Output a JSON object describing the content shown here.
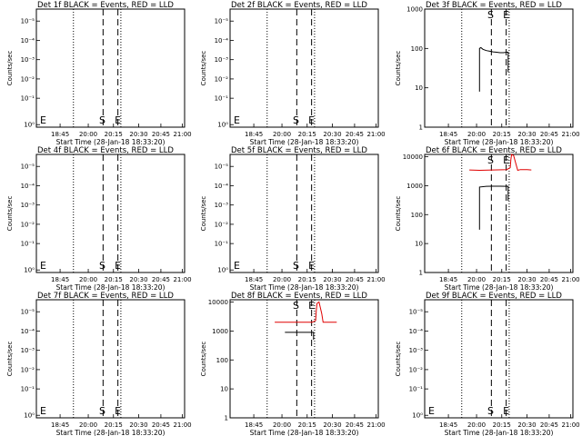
{
  "chart_data": [
    {
      "type": "line",
      "title": "Det 1f BLACK = Events, RED = LLD",
      "xlabel": "Start Time (28-Jan-18 18:33:20)",
      "ylabel": "Counts/sec",
      "xticks": [
        "18:45",
        "20:00",
        "20:15",
        "20:30",
        "20:45",
        "21:00"
      ],
      "yscale": "log",
      "yticks": [
        "10⁰",
        "10⁻¹",
        "10⁻²",
        "10⁻³",
        "10⁻⁴",
        "10⁻⁵"
      ],
      "ylim": [
        0.5,
        8
      ],
      "markers": [
        {
          "label": "S",
          "x": 0.445
        },
        {
          "label": "E",
          "x": 0.55
        }
      ],
      "vlines_dotted": [
        0.25,
        0.57
      ],
      "vlines_dashed": [
        0.45,
        0.55
      ],
      "series": []
    },
    {
      "type": "line",
      "title": "Det 2f BLACK = Events, RED = LLD",
      "xlabel": "Start Time (28-Jan-18 18:33:20)",
      "ylabel": "Counts/sec",
      "xticks": [
        "18:45",
        "20:00",
        "20:15",
        "20:30",
        "20:45",
        "21:00"
      ],
      "yscale": "log",
      "yticks": [
        "10⁰",
        "10⁻¹",
        "10⁻²",
        "10⁻³",
        "10⁻⁴",
        "10⁻⁵"
      ],
      "ylim": [
        0.5,
        8
      ],
      "markers": [
        {
          "label": "S",
          "x": 0.445
        },
        {
          "label": "E",
          "x": 0.55
        }
      ],
      "vlines_dotted": [
        0.25,
        0.57
      ],
      "vlines_dashed": [
        0.45,
        0.55
      ],
      "series": []
    },
    {
      "type": "line",
      "title": "Det 3f BLACK = Events, RED = LLD",
      "xlabel": "Start Time (28-Jan-18 18:33:20)",
      "ylabel": "Counts/sec",
      "xticks": [
        "18:45",
        "20:00",
        "20:15",
        "20:30",
        "20:45",
        "21:00"
      ],
      "yscale": "log",
      "yticks": [
        "1",
        "10",
        "100",
        "1000"
      ],
      "ylim": [
        1,
        1000
      ],
      "markers": [
        {
          "label": "S",
          "x": 0.445
        },
        {
          "label": "E",
          "x": 0.55
        }
      ],
      "vlines_dotted": [
        0.25,
        0.57
      ],
      "vlines_dashed": [
        0.45,
        0.55
      ],
      "series": [
        {
          "color": "#000000",
          "points": [
            [
              0.0,
              8
            ],
            [
              0.0,
              100
            ],
            [
              0.02,
              105
            ],
            [
              0.05,
              95
            ],
            [
              0.1,
              88
            ],
            [
              0.15,
              85
            ],
            [
              0.2,
              82
            ],
            [
              0.25,
              80
            ],
            [
              0.3,
              78
            ],
            [
              0.35,
              78
            ],
            [
              0.4,
              80
            ],
            [
              0.42,
              80
            ],
            [
              0.42,
              25
            ]
          ]
        }
      ]
    },
    {
      "type": "line",
      "title": "Det 4f BLACK = Events, RED = LLD",
      "xlabel": "Start Time (28-Jan-18 18:33:20)",
      "ylabel": "Counts/sec",
      "xticks": [
        "18:45",
        "20:00",
        "20:15",
        "20:30",
        "20:45",
        "21:00"
      ],
      "yscale": "log",
      "yticks": [
        "10⁰",
        "10⁻¹",
        "10⁻²",
        "10⁻³",
        "10⁻⁴",
        "10⁻⁵"
      ],
      "ylim": [
        0.5,
        8
      ],
      "markers": [
        {
          "label": "S",
          "x": 0.445
        },
        {
          "label": "E",
          "x": 0.55
        }
      ],
      "vlines_dotted": [
        0.25,
        0.57
      ],
      "vlines_dashed": [
        0.45,
        0.55
      ],
      "series": []
    },
    {
      "type": "line",
      "title": "Det 5f BLACK = Events, RED = LLD",
      "xlabel": "Start Time (28-Jan-18 18:33:20)",
      "ylabel": "Counts/sec",
      "xticks": [
        "18:45",
        "20:00",
        "20:15",
        "20:30",
        "20:45",
        "21:00"
      ],
      "yscale": "log",
      "yticks": [
        "10⁰",
        "10⁻¹",
        "10⁻²",
        "10⁻³",
        "10⁻⁴",
        "10⁻⁵"
      ],
      "ylim": [
        0.5,
        8
      ],
      "markers": [
        {
          "label": "S",
          "x": 0.445
        },
        {
          "label": "E",
          "x": 0.55
        }
      ],
      "vlines_dotted": [
        0.25,
        0.57
      ],
      "vlines_dashed": [
        0.45,
        0.55
      ],
      "series": []
    },
    {
      "type": "line",
      "title": "Det 6f BLACK = Events, RED = LLD",
      "xlabel": "Start Time (28-Jan-18 18:33:20)",
      "ylabel": "Counts/sec",
      "xticks": [
        "18:45",
        "20:00",
        "20:15",
        "20:30",
        "20:45",
        "21:00"
      ],
      "yscale": "log",
      "yticks": [
        "1",
        "10",
        "100",
        "1000",
        "10000"
      ],
      "ylim": [
        1,
        12000
      ],
      "markers": [
        {
          "label": "S",
          "x": 0.445
        },
        {
          "label": "E",
          "x": 0.55
        }
      ],
      "vlines_dotted": [
        0.25,
        0.57
      ],
      "vlines_dashed": [
        0.45,
        0.55
      ],
      "series": [
        {
          "color": "#000000",
          "points": [
            [
              0.0,
              30
            ],
            [
              0.0,
              900
            ],
            [
              0.1,
              950
            ],
            [
              0.2,
              960
            ],
            [
              0.3,
              960
            ],
            [
              0.4,
              950
            ],
            [
              0.42,
              950
            ],
            [
              0.42,
              300
            ]
          ]
        },
        {
          "color": "#e00000",
          "points": [
            [
              -0.15,
              3500
            ],
            [
              0.0,
              3400
            ],
            [
              0.2,
              3500
            ],
            [
              0.4,
              3600
            ],
            [
              0.45,
              4200
            ],
            [
              0.46,
              8000
            ],
            [
              0.47,
              12000
            ],
            [
              0.5,
              11000
            ],
            [
              0.54,
              5000
            ],
            [
              0.56,
              3400
            ],
            [
              0.6,
              3600
            ],
            [
              0.7,
              3600
            ],
            [
              0.76,
              3500
            ]
          ]
        }
      ]
    },
    {
      "type": "line",
      "title": "Det 7f BLACK = Events, RED = LLD",
      "xlabel": "Start Time (28-Jan-18 18:33:20)",
      "ylabel": "Counts/sec",
      "xticks": [
        "18:45",
        "20:00",
        "20:15",
        "20:30",
        "20:45",
        "21:00"
      ],
      "yscale": "log",
      "yticks": [
        "10⁰",
        "10⁻¹",
        "10⁻²",
        "10⁻³",
        "10⁻⁴",
        "10⁻⁵"
      ],
      "ylim": [
        0.5,
        8
      ],
      "markers": [
        {
          "label": "S",
          "x": 0.445
        },
        {
          "label": "E",
          "x": 0.55
        }
      ],
      "vlines_dotted": [
        0.25,
        0.57
      ],
      "vlines_dashed": [
        0.45,
        0.55
      ],
      "series": []
    },
    {
      "type": "line",
      "title": "Det 8f BLACK = Events, RED = LLD",
      "xlabel": "Start Time (28-Jan-18 18:33:20)",
      "ylabel": "Counts/sec",
      "xticks": [
        "18:45",
        "20:00",
        "20:15",
        "20:30",
        "20:45",
        "21:00"
      ],
      "yscale": "log",
      "yticks": [
        "1",
        "10",
        "100",
        "1000",
        "10000"
      ],
      "ylim": [
        1,
        12000
      ],
      "markers": [
        {
          "label": "S",
          "x": 0.445
        },
        {
          "label": "E",
          "x": 0.55
        }
      ],
      "vlines_dotted": [
        0.25,
        0.57
      ],
      "vlines_dashed": [
        0.45,
        0.55
      ],
      "series": [
        {
          "color": "#000000",
          "points": [
            [
              0.0,
              900
            ],
            [
              0.1,
              900
            ],
            [
              0.2,
              900
            ],
            [
              0.3,
              900
            ],
            [
              0.4,
              900
            ],
            [
              0.42,
              900
            ],
            [
              0.42,
              500
            ]
          ]
        },
        {
          "color": "#e00000",
          "points": [
            [
              -0.15,
              2000
            ],
            [
              0.0,
              2000
            ],
            [
              0.2,
              2000
            ],
            [
              0.4,
              2000
            ],
            [
              0.45,
              2300
            ],
            [
              0.46,
              5000
            ],
            [
              0.47,
              9000
            ],
            [
              0.5,
              10000
            ],
            [
              0.54,
              4000
            ],
            [
              0.56,
              2000
            ],
            [
              0.6,
              2000
            ],
            [
              0.7,
              2000
            ],
            [
              0.76,
              2000
            ]
          ]
        }
      ]
    },
    {
      "type": "line",
      "title": "Det 9f BLACK = Events, RED = LLD",
      "xlabel": "Start Time (28-Jan-18 18:33:20)",
      "ylabel": "Counts/sec",
      "xticks": [
        "18:45",
        "20:00",
        "20:15",
        "20:30",
        "20:45",
        "21:00"
      ],
      "yscale": "log",
      "yticks": [
        "10⁰",
        "10⁻¹",
        "10⁻²",
        "10⁻³",
        "10⁻⁴",
        "10⁻⁵"
      ],
      "ylim": [
        0.5,
        8
      ],
      "markers": [
        {
          "label": "S",
          "x": 0.445
        },
        {
          "label": "E",
          "x": 0.55
        }
      ],
      "vlines_dotted": [
        0.25,
        0.57
      ],
      "vlines_dashed": [
        0.45,
        0.55
      ],
      "series": []
    }
  ]
}
